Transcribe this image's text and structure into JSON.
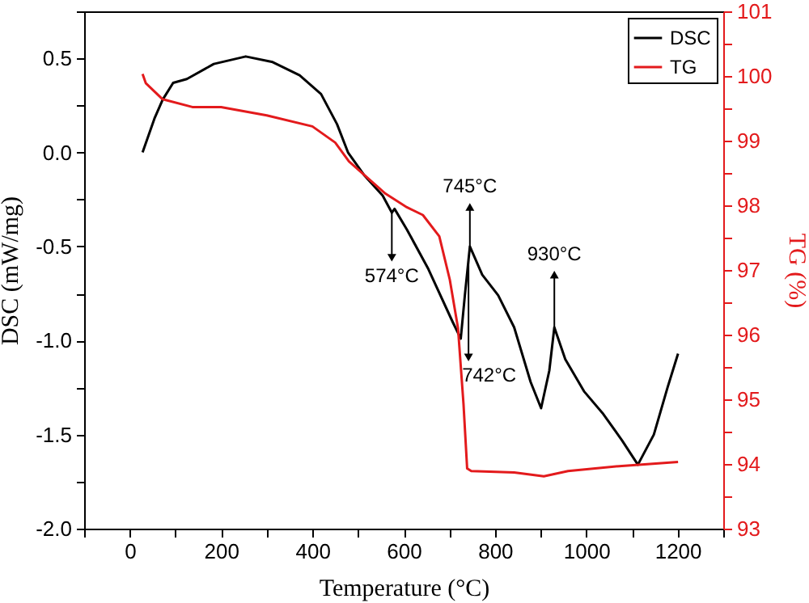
{
  "chart_data": {
    "type": "line",
    "xlabel": "Temperature (°C)",
    "ylabel": "DSC (mW/mg)",
    "y2label": "TG (%)",
    "xlim": [
      -100,
      1300
    ],
    "xticks": [
      {
        "value": -100,
        "label": null
      },
      0,
      {
        "value": 100,
        "label": null
      },
      200,
      {
        "value": 300,
        "label": null
      },
      400,
      {
        "value": 500,
        "label": null
      },
      600,
      {
        "value": 700,
        "label": null
      },
      800,
      {
        "value": 900,
        "label": null
      },
      1000,
      {
        "value": 1100,
        "label": null
      },
      1200,
      {
        "value": 1300,
        "label": null
      }
    ],
    "ylim": [
      -2.0,
      0.75
    ],
    "yticks": [
      {
        "value": -2.0,
        "label": "-2.0"
      },
      {
        "value": -1.75,
        "label": null
      },
      -1.5,
      {
        "value": -1.25,
        "label": null
      },
      {
        "value": -1.0,
        "label": "-1.0"
      },
      {
        "value": -0.75,
        "label": null
      },
      -0.5,
      {
        "value": -0.25,
        "label": null
      },
      {
        "value": 0,
        "label": "0.0"
      },
      {
        "value": 0.25,
        "label": null
      },
      0.5,
      {
        "value": 0.75,
        "label": null
      }
    ],
    "y2lim": [
      93,
      101
    ],
    "y2ticks": [
      93,
      {
        "value": 93.5,
        "label": null
      },
      94,
      {
        "value": 94.5,
        "label": null
      },
      95,
      {
        "value": 95.5,
        "label": null
      },
      96,
      {
        "value": 96.5,
        "label": null
      },
      97,
      {
        "value": 97.5,
        "label": null
      },
      98,
      {
        "value": 98.5,
        "label": null
      },
      99,
      {
        "value": 99.5,
        "label": null
      },
      100,
      {
        "value": 100.5,
        "label": null
      },
      101
    ],
    "grid": false,
    "legend": "top right",
    "marker": "none",
    "line_style": "solid",
    "series": [
      {
        "name": "DSC",
        "color": "#000000",
        "x": [
          28,
          54,
          72,
          95,
          125,
          184,
          254,
          313,
          372,
          419,
          454,
          478,
          513,
          554,
          574,
          580,
          607,
          654,
          707,
          725,
          734,
          745,
          772,
          807,
          842,
          878,
          901,
          919,
          930,
          954,
          995,
          1037,
          1078,
          1113,
          1148,
          1178,
          1201
        ],
        "values": [
          0.0,
          0.18,
          0.28,
          0.37,
          0.39,
          0.47,
          0.51,
          0.48,
          0.41,
          0.31,
          0.15,
          0.0,
          -0.12,
          -0.23,
          -0.32,
          -0.3,
          -0.41,
          -0.62,
          -0.9,
          -0.99,
          -0.76,
          -0.5,
          -0.65,
          -0.76,
          -0.93,
          -1.22,
          -1.36,
          -1.16,
          -0.93,
          -1.1,
          -1.27,
          -1.39,
          -1.53,
          -1.66,
          -1.5,
          -1.25,
          -1.07
        ]
      },
      {
        "name": "TG",
        "color": "#e31a1c",
        "axis": "y2",
        "x": [
          28,
          35,
          72,
          137,
          200,
          300,
          400,
          450,
          480,
          520,
          560,
          607,
          642,
          678,
          701,
          719,
          731,
          739,
          748,
          842,
          907,
          960,
          1078,
          1201
        ],
        "values": [
          100.03,
          99.89,
          99.64,
          99.52,
          99.52,
          99.39,
          99.22,
          98.97,
          98.68,
          98.43,
          98.18,
          97.97,
          97.85,
          97.52,
          96.85,
          96.1,
          94.93,
          93.93,
          93.89,
          93.87,
          93.81,
          93.89,
          93.97,
          94.03
        ]
      }
    ],
    "annotations": [
      {
        "text": "574°C",
        "x": 574,
        "y": -0.56
      },
      {
        "text": "745°C",
        "x": 745,
        "y": -0.29
      },
      {
        "text": "742°C",
        "x": 742,
        "y": -1.09
      },
      {
        "text": "930°C",
        "x": 930,
        "y": -0.65
      }
    ]
  }
}
